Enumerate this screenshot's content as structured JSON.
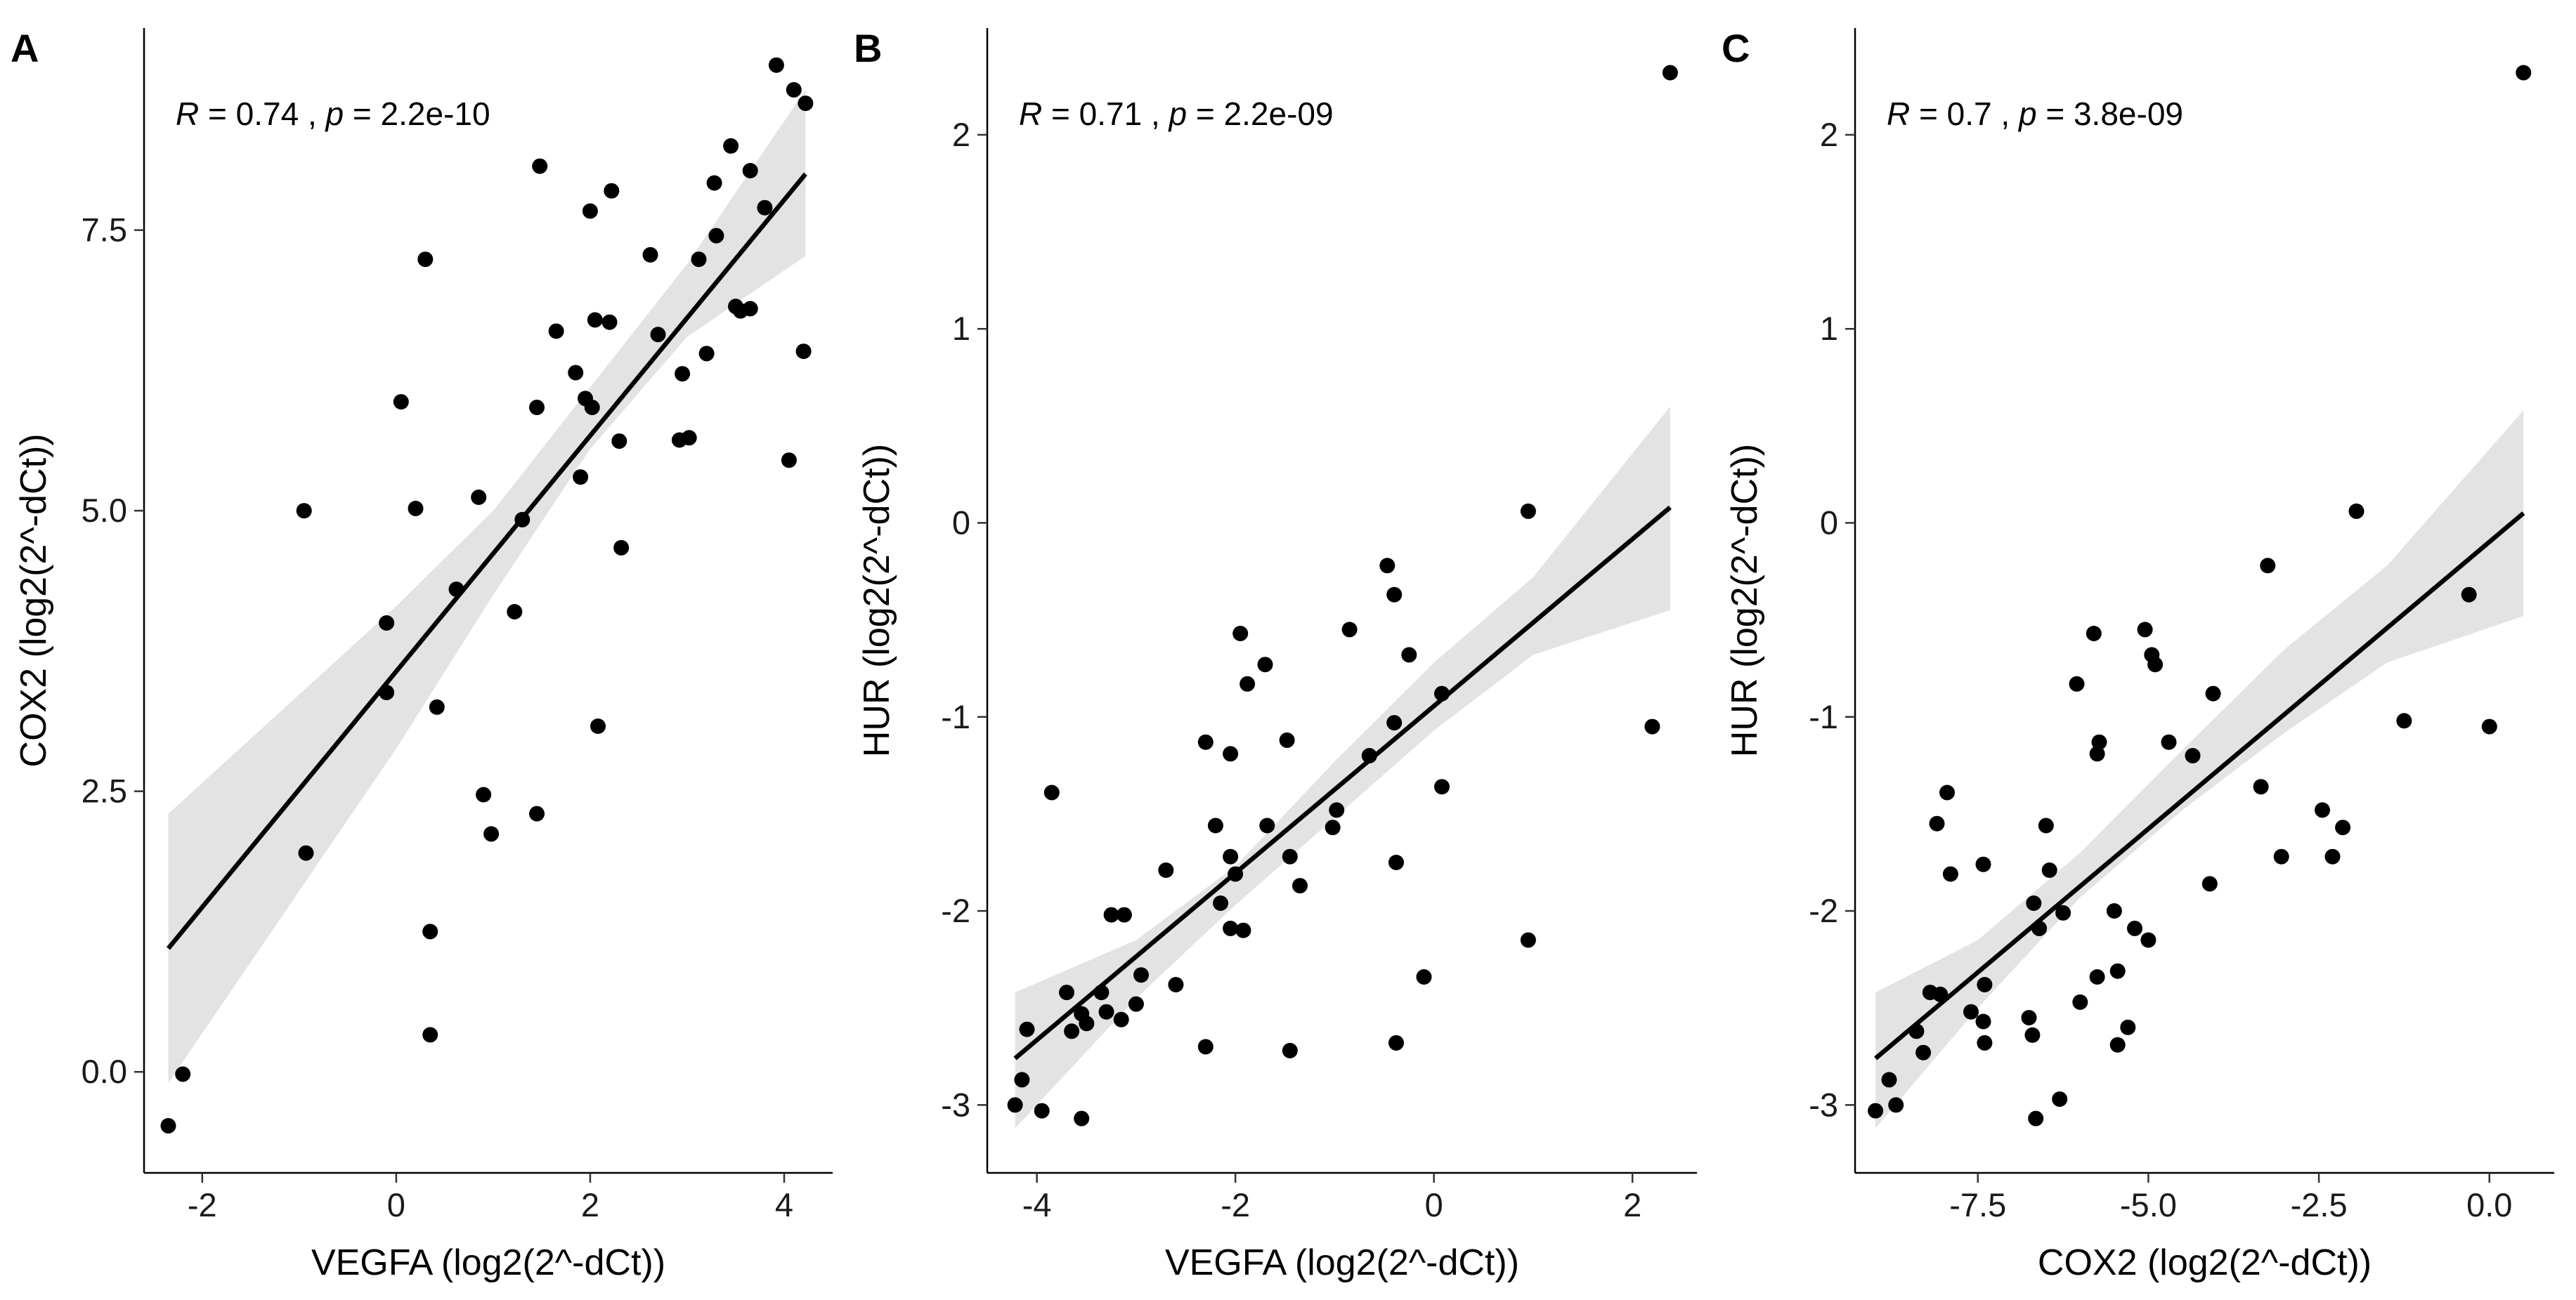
{
  "chart_data": [
    {
      "panel": "A",
      "type": "scatter",
      "annotation": {
        "r_label": "R",
        "r_text": " = 0.74 , ",
        "p_label": "p",
        "p_text": " = 2.2e-10"
      },
      "xlabel": "VEGFA (log2(2^-dCt))",
      "ylabel": "COX2 (log2(2^-dCt))",
      "xlim": [
        -2.6,
        4.5
      ],
      "ylim": [
        -0.9,
        9.3
      ],
      "xticks": [
        -2,
        0,
        2,
        4
      ],
      "xtick_labels": [
        "-2",
        "0",
        "2",
        "4"
      ],
      "yticks": [
        0,
        2.5,
        5,
        7.5
      ],
      "ytick_labels": [
        "0.0",
        "2.5",
        "5.0",
        "7.5"
      ],
      "points": [
        [
          -2.35,
          -0.48
        ],
        [
          -2.2,
          -0.02
        ],
        [
          -0.95,
          5.0
        ],
        [
          -0.93,
          1.95
        ],
        [
          -0.1,
          4.0
        ],
        [
          -0.1,
          3.38
        ],
        [
          0.05,
          5.97
        ],
        [
          0.2,
          5.02
        ],
        [
          0.3,
          7.24
        ],
        [
          0.35,
          1.25
        ],
        [
          0.35,
          0.33
        ],
        [
          0.42,
          3.25
        ],
        [
          0.62,
          4.3
        ],
        [
          0.85,
          5.12
        ],
        [
          0.9,
          2.47
        ],
        [
          0.98,
          2.12
        ],
        [
          1.22,
          4.1
        ],
        [
          1.3,
          4.92
        ],
        [
          1.45,
          5.92
        ],
        [
          1.48,
          8.07
        ],
        [
          1.45,
          2.3
        ],
        [
          1.65,
          6.6
        ],
        [
          1.85,
          6.23
        ],
        [
          1.9,
          5.3
        ],
        [
          1.95,
          6.0
        ],
        [
          2.0,
          7.67
        ],
        [
          2.02,
          5.92
        ],
        [
          2.05,
          6.7
        ],
        [
          2.08,
          3.08
        ],
        [
          2.2,
          6.68
        ],
        [
          2.22,
          7.85
        ],
        [
          2.3,
          5.62
        ],
        [
          2.32,
          4.67
        ],
        [
          2.62,
          7.28
        ],
        [
          2.7,
          6.57
        ],
        [
          2.92,
          5.63
        ],
        [
          2.95,
          6.22
        ],
        [
          3.02,
          5.65
        ],
        [
          3.12,
          7.24
        ],
        [
          3.2,
          6.4
        ],
        [
          3.28,
          7.92
        ],
        [
          3.3,
          7.45
        ],
        [
          3.45,
          8.25
        ],
        [
          3.5,
          6.82
        ],
        [
          3.55,
          6.78
        ],
        [
          3.65,
          6.8
        ],
        [
          3.65,
          8.03
        ],
        [
          3.8,
          7.7
        ],
        [
          3.92,
          8.97
        ],
        [
          4.05,
          5.45
        ],
        [
          4.1,
          8.75
        ],
        [
          4.2,
          6.42
        ],
        [
          4.22,
          8.63
        ]
      ],
      "fit": {
        "x": [
          -2.35,
          4.22
        ],
        "y": [
          1.1,
          8.0
        ]
      },
      "ci_band": {
        "x": [
          -2.35,
          0.0,
          1.0,
          2.0,
          3.0,
          4.22
        ],
        "lower": [
          -0.1,
          2.88,
          4.25,
          5.55,
          6.55,
          7.27
        ],
        "upper": [
          2.3,
          4.15,
          5.0,
          6.1,
          7.2,
          8.75
        ]
      }
    },
    {
      "panel": "B",
      "type": "scatter",
      "annotation": {
        "r_label": "R",
        "r_text": " = 0.71 , ",
        "p_label": "p",
        "p_text": " = 2.2e-09"
      },
      "xlabel": "VEGFA (log2(2^-dCt))",
      "ylabel": "HUR (log2(2^-dCt))",
      "xlim": [
        -4.5,
        2.65
      ],
      "ylim": [
        -3.35,
        2.55
      ],
      "xticks": [
        -4,
        -2,
        0,
        2
      ],
      "xtick_labels": [
        "-4",
        "-2",
        "0",
        "2"
      ],
      "yticks": [
        -3,
        -2,
        -1,
        0,
        1,
        2
      ],
      "ytick_labels": [
        "-3",
        "-2",
        "-1",
        "0",
        "1",
        "2"
      ],
      "points": [
        [
          -4.22,
          -3.0
        ],
        [
          -4.15,
          -2.87
        ],
        [
          -4.1,
          -2.61
        ],
        [
          -3.95,
          -3.03
        ],
        [
          -3.85,
          -1.39
        ],
        [
          -3.7,
          -2.42
        ],
        [
          -3.65,
          -2.62
        ],
        [
          -3.55,
          -3.07
        ],
        [
          -3.55,
          -2.53
        ],
        [
          -3.5,
          -2.58
        ],
        [
          -3.35,
          -2.42
        ],
        [
          -3.3,
          -2.52
        ],
        [
          -3.25,
          -2.02
        ],
        [
          -3.15,
          -2.56
        ],
        [
          -3.12,
          -2.02
        ],
        [
          -3.0,
          -2.48
        ],
        [
          -2.95,
          -2.33
        ],
        [
          -2.7,
          -1.79
        ],
        [
          -2.6,
          -2.38
        ],
        [
          -2.3,
          -1.13
        ],
        [
          -2.3,
          -2.7
        ],
        [
          -2.2,
          -1.56
        ],
        [
          -2.15,
          -1.96
        ],
        [
          -2.05,
          -1.19
        ],
        [
          -2.05,
          -1.72
        ],
        [
          -2.05,
          -2.09
        ],
        [
          -2.0,
          -1.81
        ],
        [
          -1.95,
          -0.57
        ],
        [
          -1.92,
          -2.1
        ],
        [
          -1.88,
          -0.83
        ],
        [
          -1.7,
          -0.73
        ],
        [
          -1.68,
          -1.56
        ],
        [
          -1.48,
          -1.12
        ],
        [
          -1.45,
          -2.72
        ],
        [
          -1.45,
          -1.72
        ],
        [
          -1.35,
          -1.87
        ],
        [
          -1.02,
          -1.57
        ],
        [
          -0.98,
          -1.48
        ],
        [
          -0.85,
          -0.55
        ],
        [
          -0.65,
          -1.2
        ],
        [
          -0.47,
          -0.22
        ],
        [
          -0.4,
          -0.37
        ],
        [
          -0.4,
          -1.03
        ],
        [
          -0.38,
          -1.75
        ],
        [
          -0.38,
          -2.68
        ],
        [
          -0.25,
          -0.68
        ],
        [
          -0.1,
          -2.34
        ],
        [
          0.08,
          -1.36
        ],
        [
          0.08,
          -0.88
        ],
        [
          0.95,
          0.06
        ],
        [
          0.95,
          -2.15
        ],
        [
          2.2,
          -1.05
        ],
        [
          2.38,
          2.32
        ]
      ],
      "fit": {
        "x": [
          -4.22,
          2.38
        ],
        "y": [
          -2.76,
          0.08
        ]
      },
      "ci_band": {
        "x": [
          -4.22,
          -3.0,
          -2.0,
          -1.0,
          0.0,
          1.0,
          2.38
        ],
        "lower": [
          -3.12,
          -2.45,
          -1.97,
          -1.52,
          -1.07,
          -0.68,
          -0.45
        ],
        "upper": [
          -2.42,
          -2.15,
          -1.77,
          -1.23,
          -0.72,
          -0.28,
          0.6
        ]
      }
    },
    {
      "panel": "C",
      "type": "scatter",
      "annotation": {
        "r_label": "R",
        "r_text": " = 0.7 , ",
        "p_label": "p",
        "p_text": " = 3.8e-09"
      },
      "xlabel": "COX2 (log2(2^-dCt))",
      "ylabel": "HUR (log2(2^-dCt))",
      "xlim": [
        -9.3,
        0.95
      ],
      "ylim": [
        -3.35,
        2.55
      ],
      "xticks": [
        -7.5,
        -5,
        -2.5,
        0
      ],
      "xtick_labels": [
        "-7.5",
        "-5.0",
        "-2.5",
        "0.0"
      ],
      "yticks": [
        -3,
        -2,
        -1,
        0,
        1,
        2
      ],
      "ytick_labels": [
        "-3",
        "-2",
        "-1",
        "0",
        "1",
        "2"
      ],
      "points": [
        [
          -9.0,
          -3.03
        ],
        [
          -8.8,
          -2.87
        ],
        [
          -8.7,
          -3.0
        ],
        [
          -8.4,
          -2.62
        ],
        [
          -8.3,
          -2.73
        ],
        [
          -8.2,
          -2.42
        ],
        [
          -8.1,
          -1.55
        ],
        [
          -8.05,
          -2.43
        ],
        [
          -7.95,
          -1.39
        ],
        [
          -7.9,
          -1.81
        ],
        [
          -7.6,
          -2.52
        ],
        [
          -7.42,
          -1.76
        ],
        [
          -7.42,
          -2.57
        ],
        [
          -7.4,
          -2.68
        ],
        [
          -7.4,
          -2.38
        ],
        [
          -6.75,
          -2.55
        ],
        [
          -6.7,
          -2.64
        ],
        [
          -6.68,
          -1.96
        ],
        [
          -6.65,
          -3.07
        ],
        [
          -6.6,
          -2.09
        ],
        [
          -6.5,
          -1.56
        ],
        [
          -6.45,
          -1.79
        ],
        [
          -6.3,
          -2.97
        ],
        [
          -6.25,
          -2.01
        ],
        [
          -6.05,
          -0.83
        ],
        [
          -6.0,
          -2.47
        ],
        [
          -5.8,
          -0.57
        ],
        [
          -5.75,
          -1.19
        ],
        [
          -5.75,
          -2.34
        ],
        [
          -5.72,
          -1.13
        ],
        [
          -5.5,
          -2.0
        ],
        [
          -5.45,
          -2.31
        ],
        [
          -5.45,
          -2.69
        ],
        [
          -5.3,
          -2.6
        ],
        [
          -5.2,
          -2.09
        ],
        [
          -5.05,
          -0.55
        ],
        [
          -5.0,
          -2.15
        ],
        [
          -4.95,
          -0.68
        ],
        [
          -4.9,
          -0.73
        ],
        [
          -4.7,
          -1.13
        ],
        [
          -4.35,
          -1.2
        ],
        [
          -4.05,
          -0.88
        ],
        [
          -4.1,
          -1.86
        ],
        [
          -3.35,
          -1.36
        ],
        [
          -3.25,
          -0.22
        ],
        [
          -3.05,
          -1.72
        ],
        [
          -2.45,
          -1.48
        ],
        [
          -2.3,
          -1.72
        ],
        [
          -2.15,
          -1.57
        ],
        [
          -1.95,
          0.06
        ],
        [
          -1.25,
          -1.02
        ],
        [
          -0.3,
          -0.37
        ],
        [
          0.0,
          -1.05
        ],
        [
          0.5,
          2.32
        ]
      ],
      "fit": {
        "x": [
          -9.0,
          0.5
        ],
        "y": [
          -2.76,
          0.05
        ]
      },
      "ci_band": {
        "x": [
          -9.0,
          -7.5,
          -6.0,
          -4.5,
          -3.0,
          -1.5,
          0.5
        ],
        "lower": [
          -3.12,
          -2.5,
          -1.93,
          -1.48,
          -1.08,
          -0.72,
          -0.48
        ],
        "upper": [
          -2.42,
          -2.15,
          -1.7,
          -1.17,
          -0.65,
          -0.22,
          0.58
        ]
      }
    }
  ]
}
